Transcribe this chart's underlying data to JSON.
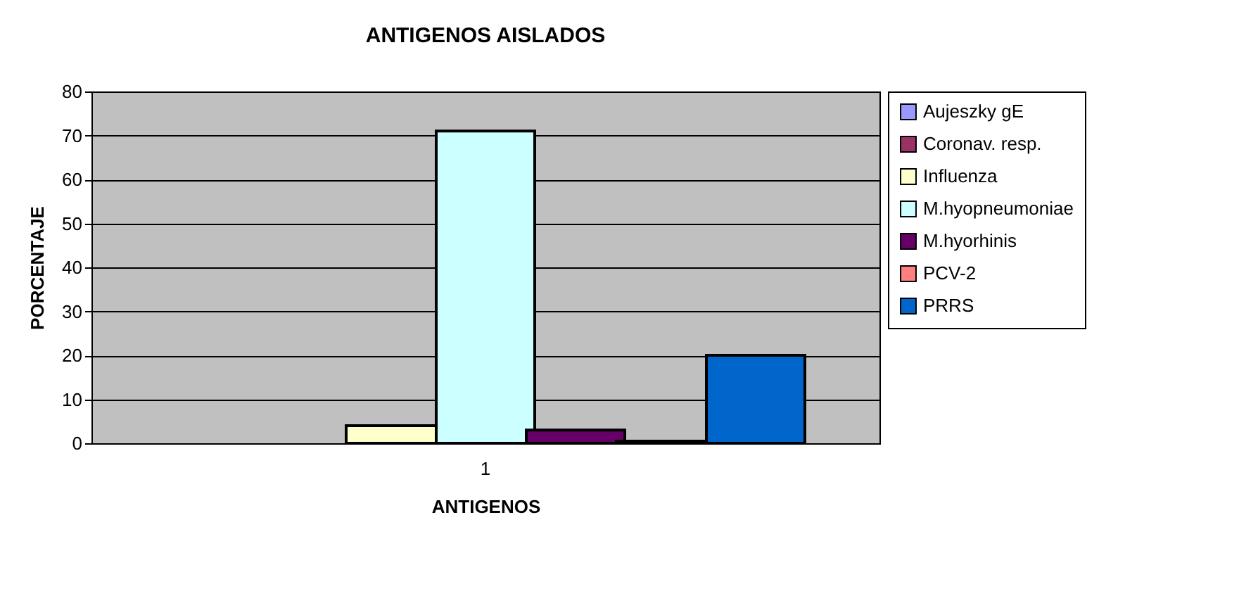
{
  "chart_data": {
    "type": "bar",
    "title": "ANTIGENOS AISLADOS",
    "xlabel": "ANTIGENOS",
    "ylabel": "PORCENTAJE",
    "categories": [
      "1"
    ],
    "series": [
      {
        "name": "Aujeszky gE",
        "color": "#9999ff",
        "values": [
          0
        ]
      },
      {
        "name": "Coronav. resp.",
        "color": "#993366",
        "values": [
          0
        ]
      },
      {
        "name": "Influenza",
        "color": "#ffffcc",
        "values": [
          4
        ]
      },
      {
        "name": "M.hyopneumoniae",
        "color": "#ccffff",
        "values": [
          71
        ]
      },
      {
        "name": "M.hyorhinis",
        "color": "#660066",
        "values": [
          3
        ]
      },
      {
        "name": "PCV-2",
        "color": "#ff8080",
        "values": [
          0.5
        ]
      },
      {
        "name": "PRRS",
        "color": "#0066cc",
        "values": [
          20
        ]
      }
    ],
    "ylim": [
      0,
      80
    ],
    "yticks": [
      0,
      10,
      20,
      30,
      40,
      50,
      60,
      70,
      80
    ],
    "grid": "y",
    "legend": "right"
  }
}
